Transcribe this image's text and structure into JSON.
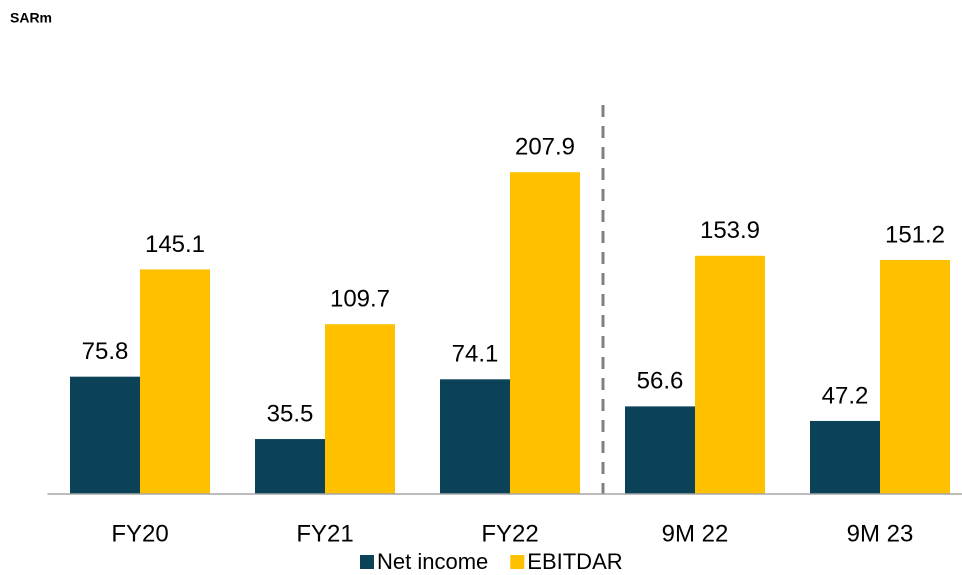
{
  "chart_data": {
    "type": "bar",
    "subtitle": "SARm",
    "categories": [
      "FY20",
      "FY21",
      "FY22",
      "9M 22",
      "9M 23"
    ],
    "series": [
      {
        "name": "Net income",
        "color": "#0b4258",
        "values": [
          75.8,
          35.5,
          74.1,
          56.6,
          47.2
        ]
      },
      {
        "name": "EBITDAR",
        "color": "#ffc000",
        "values": [
          145.1,
          109.7,
          207.9,
          153.9,
          151.2
        ]
      }
    ],
    "ylim": [
      0,
      230
    ],
    "legend": "bottom"
  }
}
